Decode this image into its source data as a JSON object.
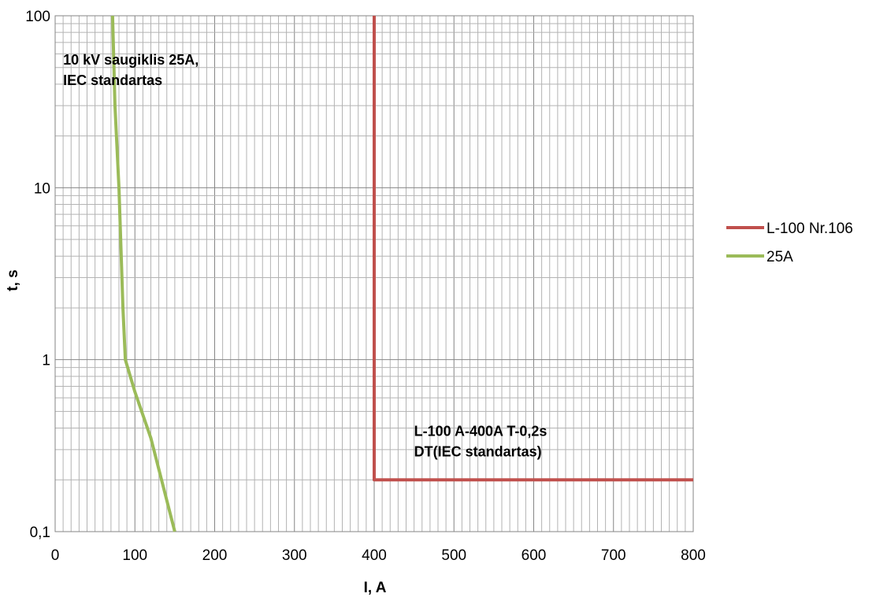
{
  "chart_data": {
    "type": "line",
    "xlabel": "I, A",
    "ylabel": "t, s",
    "xlim": [
      0,
      800
    ],
    "ylim": [
      0.1,
      100
    ],
    "y_scale": "log",
    "grid": true,
    "legend_position": "right",
    "x_ticks": [
      {
        "value": 0,
        "label": "0"
      },
      {
        "value": 100,
        "label": "100"
      },
      {
        "value": 200,
        "label": "200"
      },
      {
        "value": 300,
        "label": "300"
      },
      {
        "value": 400,
        "label": "400"
      },
      {
        "value": 500,
        "label": "500"
      },
      {
        "value": 600,
        "label": "600"
      },
      {
        "value": 700,
        "label": "700"
      },
      {
        "value": 800,
        "label": "800"
      }
    ],
    "y_ticks": [
      {
        "value": 0.1,
        "label": "0,1"
      },
      {
        "value": 1,
        "label": "1"
      },
      {
        "value": 10,
        "label": "10"
      },
      {
        "value": 100,
        "label": "100"
      }
    ],
    "series": [
      {
        "name": "L-100 Nr.106",
        "color": "#c0504d",
        "points": [
          [
            400,
            100
          ],
          [
            400,
            0.2
          ],
          [
            800,
            0.2
          ]
        ]
      },
      {
        "name": "25A",
        "color": "#9bbb59",
        "points": [
          [
            72,
            100
          ],
          [
            75,
            30
          ],
          [
            80,
            10
          ],
          [
            85,
            2
          ],
          [
            88,
            1
          ],
          [
            100,
            0.65
          ],
          [
            120,
            0.35
          ],
          [
            150,
            0.1
          ]
        ]
      }
    ],
    "annotations": [
      {
        "lines": [
          "10 kV saugiklis 25A,",
          "IEC standartas"
        ],
        "x": 10,
        "y": 52
      },
      {
        "lines": [
          "L-100  A-400A T-0,2s",
          "DT(IEC standartas)"
        ],
        "x": 450,
        "y": 0.36
      }
    ]
  }
}
